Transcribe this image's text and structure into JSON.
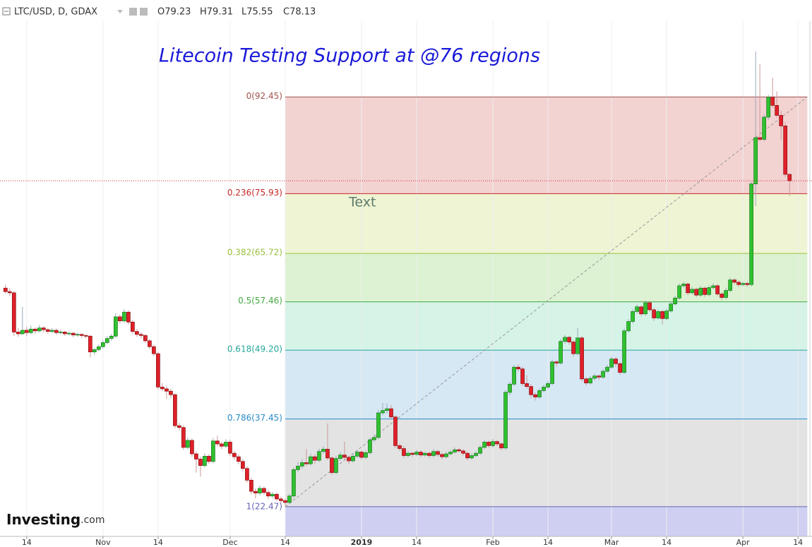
{
  "chart_data": {
    "type": "candlestick",
    "title": "Litecoin Testing Support at @76 regions",
    "symbol": "LTC/USD, D, GDAX",
    "ohlc_labels": [
      "O79.23",
      "H79.31",
      "L75.55",
      "C78.13"
    ],
    "annotation": "Text",
    "logo": "Investing",
    "logo_suffix": ".com",
    "up_color": "#2fc12f",
    "down_color": "#e0202a",
    "grid": true,
    "xlim": [
      -1.3,
      190.3
    ],
    "ylim": [
      17.4,
      109.0
    ],
    "xticks": [
      {
        "value": 5,
        "label": "14"
      },
      {
        "value": 23,
        "label": "Nov"
      },
      {
        "value": 36,
        "label": "14"
      },
      {
        "value": 53,
        "label": "Dec"
      },
      {
        "value": 66,
        "label": "14"
      },
      {
        "value": 84,
        "label": "2019"
      },
      {
        "value": 97,
        "label": "14"
      },
      {
        "value": 115,
        "label": "Feb"
      },
      {
        "value": 128,
        "label": "14"
      },
      {
        "value": 143,
        "label": "Mar"
      },
      {
        "value": 156,
        "label": "14"
      },
      {
        "value": 174,
        "label": "Apr"
      },
      {
        "value": 187,
        "label": "14"
      }
    ],
    "fib": {
      "x_range": [
        66,
        189.2
      ],
      "levels": [
        {
          "label": "0(92.45)",
          "value": 92.45,
          "color": "#a0524d",
          "fill": "#f3d2d2"
        },
        {
          "label": "0.236(75.93)",
          "value": 75.93,
          "color": "#c62828",
          "fill": "#eef4d4"
        },
        {
          "label": "0.382(65.72)",
          "value": 65.72,
          "color": "#9ac23c",
          "fill": "#dcf2d2"
        },
        {
          "label": "0.5(57.46)",
          "value": 57.46,
          "color": "#43a843",
          "fill": "#d5f3e7"
        },
        {
          "label": "0.618(49.20)",
          "value": 49.2,
          "color": "#26a69a",
          "fill": "#d6e8f4"
        },
        {
          "label": "0.786(37.45)",
          "value": 37.45,
          "color": "#2a8bc9",
          "fill": "#e3e3e3"
        },
        {
          "label": "1(22.47)",
          "value": 22.47,
          "color": "#6464b4",
          "fill": "#cfcff2"
        }
      ]
    },
    "x": [
      0,
      1,
      2,
      3,
      4,
      5,
      6,
      7,
      8,
      9,
      10,
      11,
      12,
      13,
      14,
      15,
      16,
      17,
      18,
      19,
      20,
      21,
      22,
      23,
      24,
      25,
      26,
      27,
      28,
      29,
      30,
      31,
      32,
      33,
      34,
      35,
      36,
      37,
      38,
      39,
      40,
      41,
      42,
      43,
      44,
      45,
      46,
      47,
      48,
      49,
      50,
      51,
      52,
      53,
      54,
      55,
      56,
      57,
      58,
      59,
      60,
      61,
      62,
      63,
      64,
      65,
      66,
      67,
      68,
      69,
      70,
      71,
      72,
      73,
      74,
      75,
      76,
      77,
      78,
      79,
      80,
      81,
      82,
      83,
      84,
      85,
      86,
      87,
      88,
      89,
      90,
      91,
      92,
      93,
      94,
      95,
      96,
      97,
      98,
      99,
      100,
      101,
      102,
      103,
      104,
      105,
      106,
      107,
      108,
      109,
      110,
      111,
      112,
      113,
      114,
      115,
      116,
      117,
      118,
      119,
      120,
      121,
      122,
      123,
      124,
      125,
      126,
      127,
      128,
      129,
      130,
      131,
      132,
      133,
      134,
      135,
      136,
      137,
      138,
      139,
      140,
      141,
      142,
      143,
      144,
      145,
      146,
      147,
      148,
      149,
      150,
      151,
      152,
      153,
      154,
      155,
      156,
      157,
      158,
      159,
      160,
      161,
      162,
      163,
      164,
      165,
      166,
      167,
      168,
      169,
      170,
      171,
      172,
      173,
      174,
      175,
      176,
      177,
      178,
      179,
      180,
      181,
      182,
      183,
      184,
      185
    ],
    "ohlc": [
      [
        59.8,
        60.4,
        58.9,
        59.2
      ],
      [
        59.2,
        59.8,
        58.4,
        59.0
      ],
      [
        59.0,
        59.3,
        51.6,
        52.3
      ],
      [
        52.3,
        53.0,
        51.5,
        52.0
      ],
      [
        52.0,
        56.6,
        51.8,
        52.6
      ],
      [
        52.6,
        53.2,
        51.6,
        52.2
      ],
      [
        52.2,
        53.4,
        51.9,
        52.8
      ],
      [
        52.8,
        53.1,
        52.0,
        52.5
      ],
      [
        52.5,
        53.5,
        52.2,
        53.0
      ],
      [
        53.0,
        53.3,
        52.3,
        52.7
      ],
      [
        52.7,
        53.0,
        52.0,
        52.4
      ],
      [
        52.4,
        53.0,
        52.1,
        52.6
      ],
      [
        52.6,
        52.9,
        51.8,
        52.2
      ],
      [
        52.2,
        52.7,
        51.9,
        52.3
      ],
      [
        52.3,
        52.5,
        51.6,
        52.0
      ],
      [
        52.0,
        52.4,
        51.7,
        52.1
      ],
      [
        52.1,
        52.3,
        51.4,
        51.8
      ],
      [
        51.8,
        52.2,
        51.5,
        51.9
      ],
      [
        51.9,
        52.1,
        51.3,
        51.7
      ],
      [
        51.7,
        52.0,
        51.2,
        51.6
      ],
      [
        51.6,
        51.8,
        48.0,
        48.9
      ],
      [
        48.9,
        49.6,
        48.4,
        49.3
      ],
      [
        49.3,
        50.2,
        49.0,
        49.8
      ],
      [
        49.8,
        50.9,
        49.5,
        50.5
      ],
      [
        50.5,
        51.6,
        50.2,
        51.2
      ],
      [
        51.2,
        52.0,
        50.8,
        51.6
      ],
      [
        51.6,
        55.5,
        51.3,
        54.9
      ],
      [
        54.9,
        55.3,
        53.8,
        54.2
      ],
      [
        54.2,
        56.2,
        53.9,
        55.7
      ],
      [
        55.7,
        56.0,
        53.6,
        54.0
      ],
      [
        54.0,
        54.3,
        52.0,
        52.4
      ],
      [
        52.4,
        52.8,
        51.5,
        51.9
      ],
      [
        51.9,
        52.3,
        51.2,
        51.7
      ],
      [
        51.7,
        52.0,
        50.4,
        50.8
      ],
      [
        50.8,
        51.1,
        49.4,
        49.8
      ],
      [
        49.8,
        50.1,
        48.2,
        48.6
      ],
      [
        48.6,
        48.9,
        42.5,
        42.9
      ],
      [
        42.9,
        43.6,
        42.2,
        42.6
      ],
      [
        42.6,
        43.1,
        40.9,
        42.2
      ],
      [
        42.2,
        42.6,
        41.0,
        41.6
      ],
      [
        41.6,
        41.9,
        35.9,
        36.3
      ],
      [
        36.3,
        36.8,
        35.5,
        36.0
      ],
      [
        36.0,
        36.4,
        32.2,
        32.6
      ],
      [
        32.6,
        34.3,
        32.2,
        33.8
      ],
      [
        33.8,
        34.1,
        31.0,
        31.5
      ],
      [
        31.5,
        31.9,
        28.3,
        30.6
      ],
      [
        30.6,
        31.0,
        27.6,
        29.5
      ],
      [
        29.5,
        31.6,
        29.2,
        31.1
      ],
      [
        31.1,
        31.4,
        29.8,
        30.2
      ],
      [
        30.2,
        34.2,
        29.9,
        33.7
      ],
      [
        33.7,
        34.6,
        32.8,
        33.2
      ],
      [
        33.2,
        33.6,
        32.3,
        32.8
      ],
      [
        32.8,
        34.0,
        32.5,
        33.5
      ],
      [
        33.5,
        33.9,
        31.2,
        31.6
      ],
      [
        31.6,
        32.0,
        30.5,
        31.0
      ],
      [
        31.0,
        31.4,
        29.7,
        30.2
      ],
      [
        30.2,
        30.6,
        28.5,
        29.0
      ],
      [
        29.0,
        29.4,
        26.6,
        27.0
      ],
      [
        27.0,
        27.4,
        24.6,
        25.1
      ],
      [
        25.1,
        25.6,
        23.9,
        24.8
      ],
      [
        24.8,
        26.1,
        24.4,
        25.6
      ],
      [
        25.6,
        25.9,
        24.5,
        24.9
      ],
      [
        24.9,
        25.3,
        23.8,
        24.3
      ],
      [
        24.3,
        25.0,
        23.9,
        24.6
      ],
      [
        24.6,
        24.9,
        23.4,
        23.8
      ],
      [
        23.8,
        24.2,
        23.0,
        23.5
      ],
      [
        23.5,
        23.9,
        22.47,
        23.2
      ],
      [
        23.2,
        24.7,
        22.9,
        24.3
      ],
      [
        24.3,
        29.2,
        24.0,
        28.8
      ],
      [
        28.8,
        30.1,
        28.4,
        29.4
      ],
      [
        29.4,
        30.6,
        29.0,
        30.0
      ],
      [
        30.0,
        32.3,
        29.4,
        29.8
      ],
      [
        29.8,
        31.5,
        29.5,
        31.0
      ],
      [
        31.0,
        31.4,
        29.8,
        30.4
      ],
      [
        30.4,
        32.4,
        30.1,
        31.9
      ],
      [
        31.9,
        32.8,
        31.5,
        32.3
      ],
      [
        32.3,
        36.7,
        30.4,
        30.8
      ],
      [
        30.8,
        31.1,
        27.9,
        28.3
      ],
      [
        28.3,
        31.2,
        28.0,
        30.7
      ],
      [
        30.7,
        31.8,
        30.3,
        31.3
      ],
      [
        31.3,
        33.6,
        30.5,
        30.9
      ],
      [
        30.9,
        31.2,
        29.8,
        30.3
      ],
      [
        30.3,
        31.5,
        30.0,
        31.1
      ],
      [
        31.1,
        32.2,
        30.8,
        31.8
      ],
      [
        31.8,
        32.1,
        30.5,
        30.9
      ],
      [
        30.9,
        32.1,
        30.6,
        31.7
      ],
      [
        31.7,
        34.3,
        31.4,
        33.9
      ],
      [
        33.9,
        34.8,
        33.5,
        34.3
      ],
      [
        34.3,
        39.0,
        34.0,
        38.5
      ],
      [
        38.5,
        40.2,
        38.1,
        38.9
      ],
      [
        38.9,
        40.1,
        38.4,
        39.2
      ],
      [
        39.2,
        39.8,
        37.4,
        37.8
      ],
      [
        37.8,
        38.1,
        32.5,
        32.9
      ],
      [
        32.9,
        33.3,
        32.0,
        32.4
      ],
      [
        32.4,
        32.8,
        30.8,
        31.2
      ],
      [
        31.2,
        32.0,
        30.9,
        31.6
      ],
      [
        31.6,
        31.9,
        31.0,
        31.4
      ],
      [
        31.4,
        32.2,
        31.1,
        31.8
      ],
      [
        31.8,
        32.1,
        30.9,
        31.3
      ],
      [
        31.3,
        31.9,
        31.0,
        31.6
      ],
      [
        31.6,
        31.9,
        30.8,
        31.2
      ],
      [
        31.2,
        32.3,
        30.9,
        31.9
      ],
      [
        31.9,
        32.2,
        31.0,
        31.4
      ],
      [
        31.4,
        31.7,
        30.6,
        31.0
      ],
      [
        31.0,
        31.9,
        30.7,
        31.5
      ],
      [
        31.5,
        32.2,
        31.2,
        31.8
      ],
      [
        31.8,
        32.6,
        31.5,
        32.2
      ],
      [
        32.2,
        32.5,
        31.7,
        32.0
      ],
      [
        32.0,
        32.3,
        31.2,
        31.6
      ],
      [
        31.6,
        31.9,
        30.4,
        30.8
      ],
      [
        30.8,
        31.6,
        30.5,
        31.2
      ],
      [
        31.2,
        32.0,
        30.9,
        31.6
      ],
      [
        31.6,
        33.0,
        31.3,
        32.6
      ],
      [
        32.6,
        33.9,
        32.3,
        33.5
      ],
      [
        33.5,
        33.8,
        32.5,
        32.9
      ],
      [
        32.9,
        34.0,
        32.6,
        33.6
      ],
      [
        33.6,
        33.9,
        32.8,
        33.2
      ],
      [
        33.2,
        33.5,
        32.1,
        32.5
      ],
      [
        32.5,
        42.4,
        32.2,
        42.0
      ],
      [
        42.0,
        43.8,
        41.5,
        43.4
      ],
      [
        43.4,
        46.7,
        43.1,
        46.3
      ],
      [
        46.3,
        46.8,
        45.5,
        46.0
      ],
      [
        46.0,
        46.4,
        43.1,
        43.5
      ],
      [
        43.5,
        44.9,
        42.6,
        43.0
      ],
      [
        43.0,
        43.4,
        41.0,
        41.6
      ],
      [
        41.6,
        42.0,
        40.6,
        41.2
      ],
      [
        41.2,
        42.7,
        40.9,
        42.3
      ],
      [
        42.3,
        43.3,
        42.0,
        42.9
      ],
      [
        42.9,
        43.9,
        42.6,
        43.5
      ],
      [
        43.5,
        47.6,
        43.2,
        47.2
      ],
      [
        47.2,
        47.5,
        46.4,
        47.0
      ],
      [
        47.0,
        51.1,
        46.7,
        50.7
      ],
      [
        50.7,
        51.8,
        50.3,
        51.4
      ],
      [
        51.4,
        51.7,
        50.1,
        50.6
      ],
      [
        50.6,
        50.9,
        48.1,
        48.6
      ],
      [
        48.6,
        53.0,
        48.3,
        51.3
      ],
      [
        51.3,
        51.6,
        43.8,
        44.3
      ],
      [
        44.3,
        44.6,
        43.1,
        43.6
      ],
      [
        43.6,
        44.8,
        43.3,
        44.4
      ],
      [
        44.4,
        45.2,
        44.0,
        44.8
      ],
      [
        44.8,
        45.1,
        44.1,
        44.6
      ],
      [
        44.6,
        46.0,
        44.3,
        45.6
      ],
      [
        45.6,
        46.7,
        45.3,
        46.3
      ],
      [
        46.3,
        48.1,
        46.0,
        47.7
      ],
      [
        47.7,
        48.0,
        46.4,
        46.9
      ],
      [
        46.9,
        47.2,
        45.0,
        45.4
      ],
      [
        45.4,
        52.9,
        45.1,
        52.5
      ],
      [
        52.5,
        54.5,
        52.2,
        54.1
      ],
      [
        54.1,
        56.2,
        53.8,
        55.8
      ],
      [
        55.8,
        57.0,
        55.5,
        56.6
      ],
      [
        56.6,
        56.9,
        55.0,
        55.4
      ],
      [
        55.4,
        57.7,
        55.1,
        57.3
      ],
      [
        57.3,
        57.6,
        55.7,
        56.1
      ],
      [
        56.1,
        56.4,
        54.2,
        54.7
      ],
      [
        54.7,
        56.2,
        54.4,
        55.8
      ],
      [
        55.8,
        56.1,
        53.6,
        54.6
      ],
      [
        54.6,
        56.3,
        54.3,
        55.9
      ],
      [
        55.9,
        57.5,
        55.6,
        57.1
      ],
      [
        57.1,
        58.5,
        56.8,
        58.1
      ],
      [
        58.1,
        60.6,
        57.8,
        60.2
      ],
      [
        60.2,
        60.9,
        59.8,
        60.5
      ],
      [
        60.5,
        60.8,
        58.6,
        59.0
      ],
      [
        59.0,
        60.0,
        58.7,
        59.6
      ],
      [
        59.6,
        59.9,
        58.2,
        58.6
      ],
      [
        58.6,
        60.2,
        58.3,
        59.8
      ],
      [
        59.8,
        60.1,
        58.3,
        58.7
      ],
      [
        58.7,
        60.3,
        58.4,
        59.9
      ],
      [
        59.9,
        60.6,
        59.6,
        60.2
      ],
      [
        60.2,
        60.5,
        58.4,
        58.8
      ],
      [
        58.8,
        59.1,
        57.8,
        58.2
      ],
      [
        58.2,
        59.8,
        57.9,
        59.4
      ],
      [
        59.4,
        61.6,
        59.1,
        61.2
      ],
      [
        61.2,
        61.5,
        60.4,
        60.8
      ],
      [
        60.8,
        61.1,
        60.0,
        60.4
      ],
      [
        60.4,
        60.9,
        60.1,
        60.6
      ],
      [
        60.6,
        60.9,
        60.0,
        60.4
      ],
      [
        60.4,
        78.0,
        60.1,
        77.6
      ],
      [
        77.6,
        100.2,
        73.8,
        85.5
      ],
      [
        85.5,
        98.1,
        84.8,
        85.2
      ],
      [
        85.2,
        89.5,
        84.9,
        89.0
      ],
      [
        89.0,
        92.8,
        88.5,
        92.4
      ],
      [
        92.4,
        95.7,
        90.6,
        91.0
      ],
      [
        91.0,
        93.4,
        88.9,
        89.3
      ],
      [
        89.3,
        90.1,
        85.1,
        87.5
      ],
      [
        87.5,
        88.2,
        78.8,
        79.23
      ],
      [
        79.23,
        79.31,
        75.55,
        78.13
      ]
    ]
  }
}
